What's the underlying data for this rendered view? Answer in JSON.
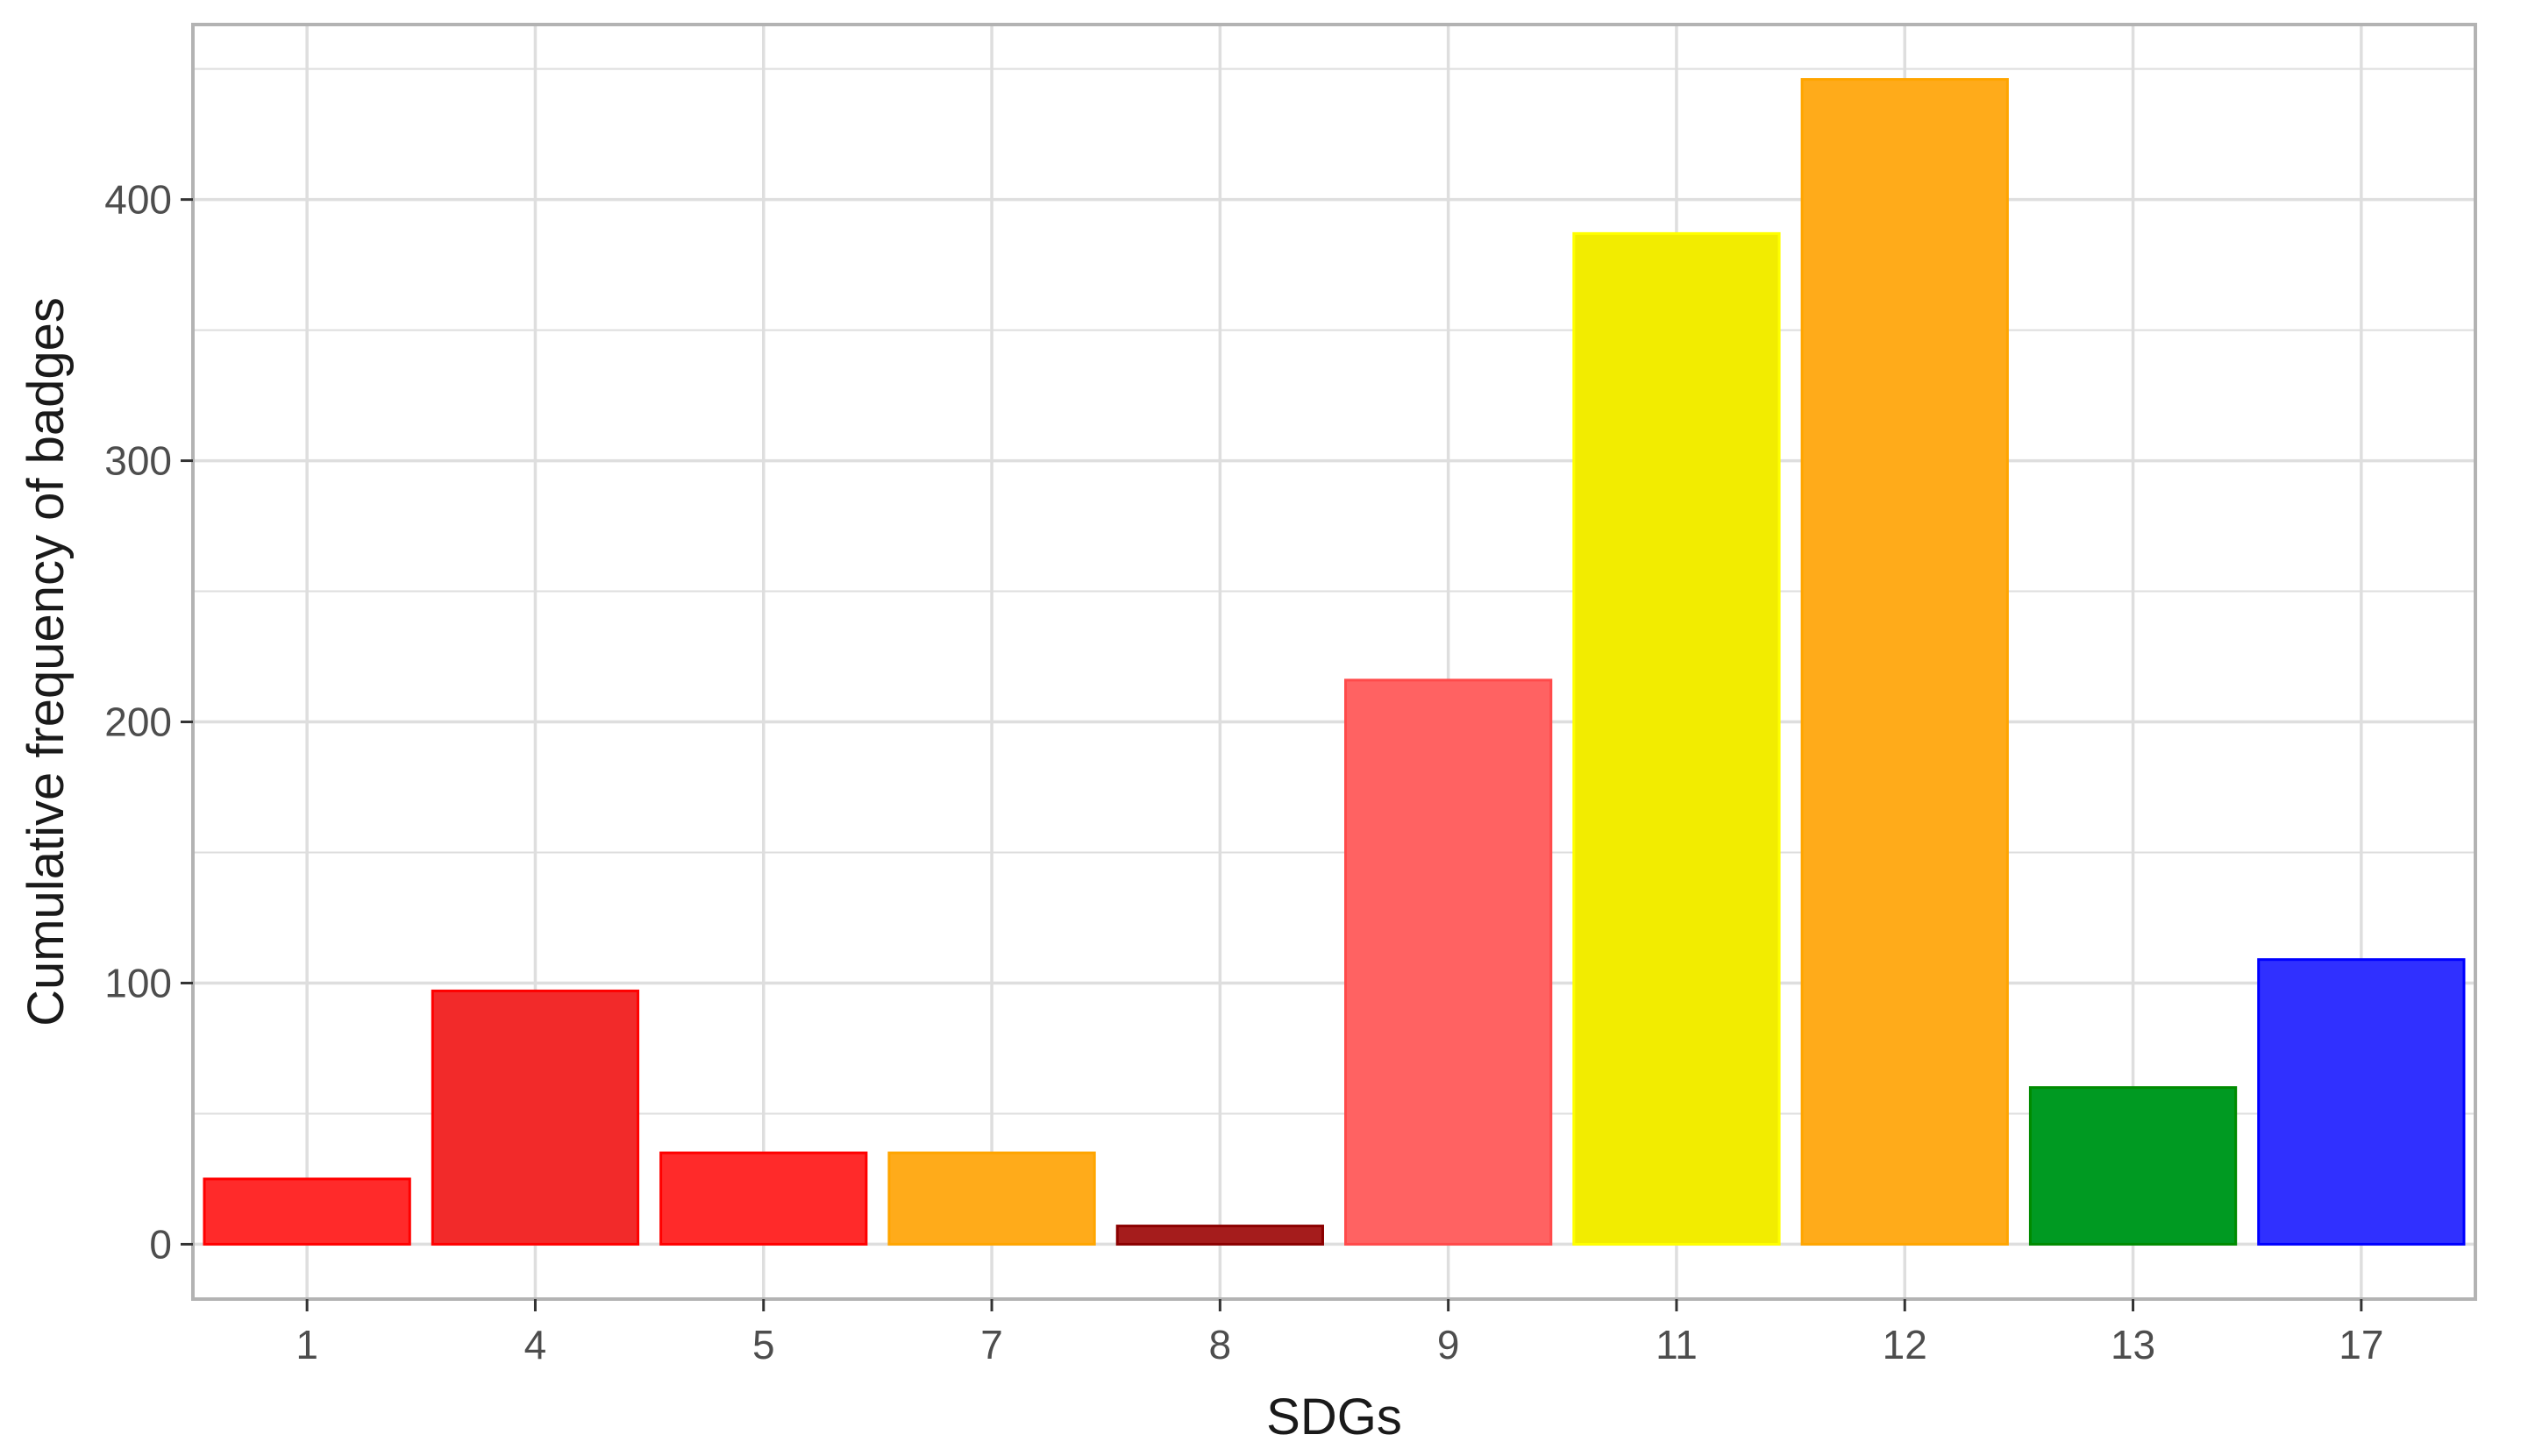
{
  "chart_data": {
    "type": "bar",
    "title": "",
    "xlabel": "SDGs",
    "ylabel": "Cumulative frequency of badges",
    "categories": [
      "1",
      "4",
      "5",
      "7",
      "8",
      "9",
      "11",
      "12",
      "13",
      "17"
    ],
    "values": [
      25,
      97,
      35,
      35,
      7,
      216,
      387,
      446,
      60,
      109
    ],
    "bar_colors": [
      "#ff2a2a",
      "#f22a2a",
      "#ff2a2a",
      "#ffab1a",
      "#a51c1c",
      "#ff6262",
      "#f2ec00",
      "#ffab1a",
      "#009a22",
      "#3030ff"
    ],
    "bar_borders": [
      "#ff0000",
      "#ff0000",
      "#ff0000",
      "#ffa500",
      "#8b0000",
      "#ff4a4a",
      "#ffff00",
      "#ffa500",
      "#008b00",
      "#0000ff"
    ],
    "ylim": [
      -21,
      467
    ],
    "yticks": [
      0,
      100,
      200,
      300,
      400
    ],
    "yticks_minor": [
      50,
      150,
      250,
      350,
      450
    ],
    "grid": true,
    "legend": "none",
    "panel_border_color": "#b3b3b3",
    "grid_color": "#dedede"
  }
}
